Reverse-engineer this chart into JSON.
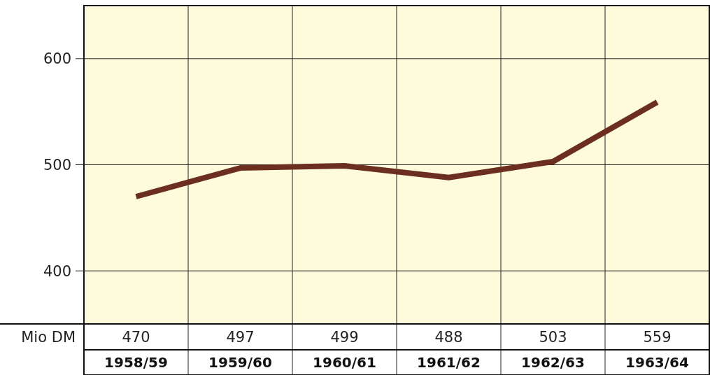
{
  "chart_data": {
    "type": "line",
    "ylabel": "Mio DM",
    "categories": [
      "1958/59",
      "1959/60",
      "1960/61",
      "1961/62",
      "1962/63",
      "1963/64"
    ],
    "series": [
      {
        "color": "#6b2e1f",
        "values": [
          470,
          497,
          499,
          488,
          503,
          559
        ]
      }
    ],
    "ylim": [
      350,
      650
    ],
    "yticks": [
      400,
      500,
      600
    ],
    "grid": true,
    "data_labels": true,
    "marker": "none",
    "line_style": "solid"
  }
}
